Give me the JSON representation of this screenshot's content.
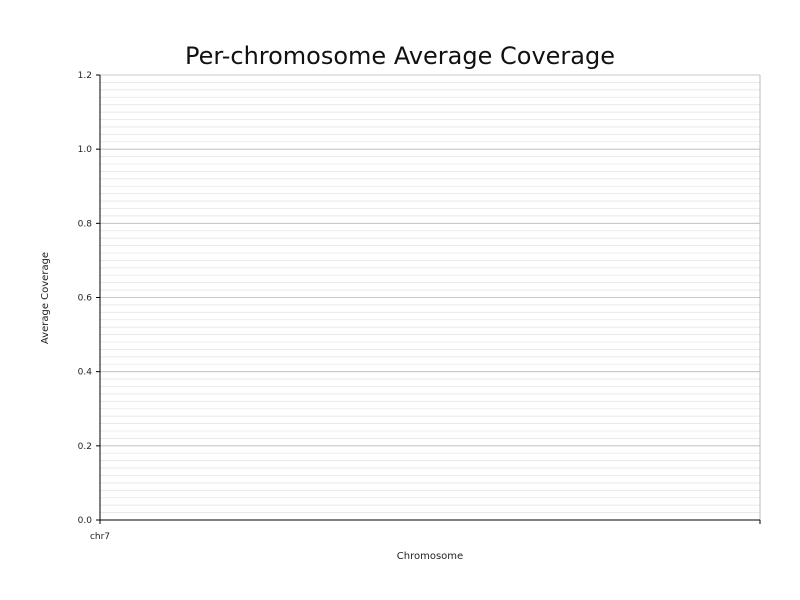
{
  "chart_data": {
    "type": "bar",
    "title": "Per-chromosome Average Coverage",
    "xlabel": "Chromosome",
    "ylabel": "Average Coverage",
    "categories": [
      "chr7"
    ],
    "values": [
      null
    ],
    "ylim": [
      0,
      1.2
    ],
    "yticks": [
      0.0,
      0.2,
      0.4,
      0.6,
      0.8,
      1.0,
      1.2
    ],
    "ytick_labels": [
      "0.0",
      "0.2",
      "0.4",
      "0.6",
      "0.8",
      "1.0",
      "1.2"
    ],
    "grid": true,
    "minor_grid": true,
    "legend": "none"
  },
  "colors": {
    "axis": "#000000",
    "major_grid": "#bdbdbd",
    "minor_grid": "#e6e6e6"
  }
}
